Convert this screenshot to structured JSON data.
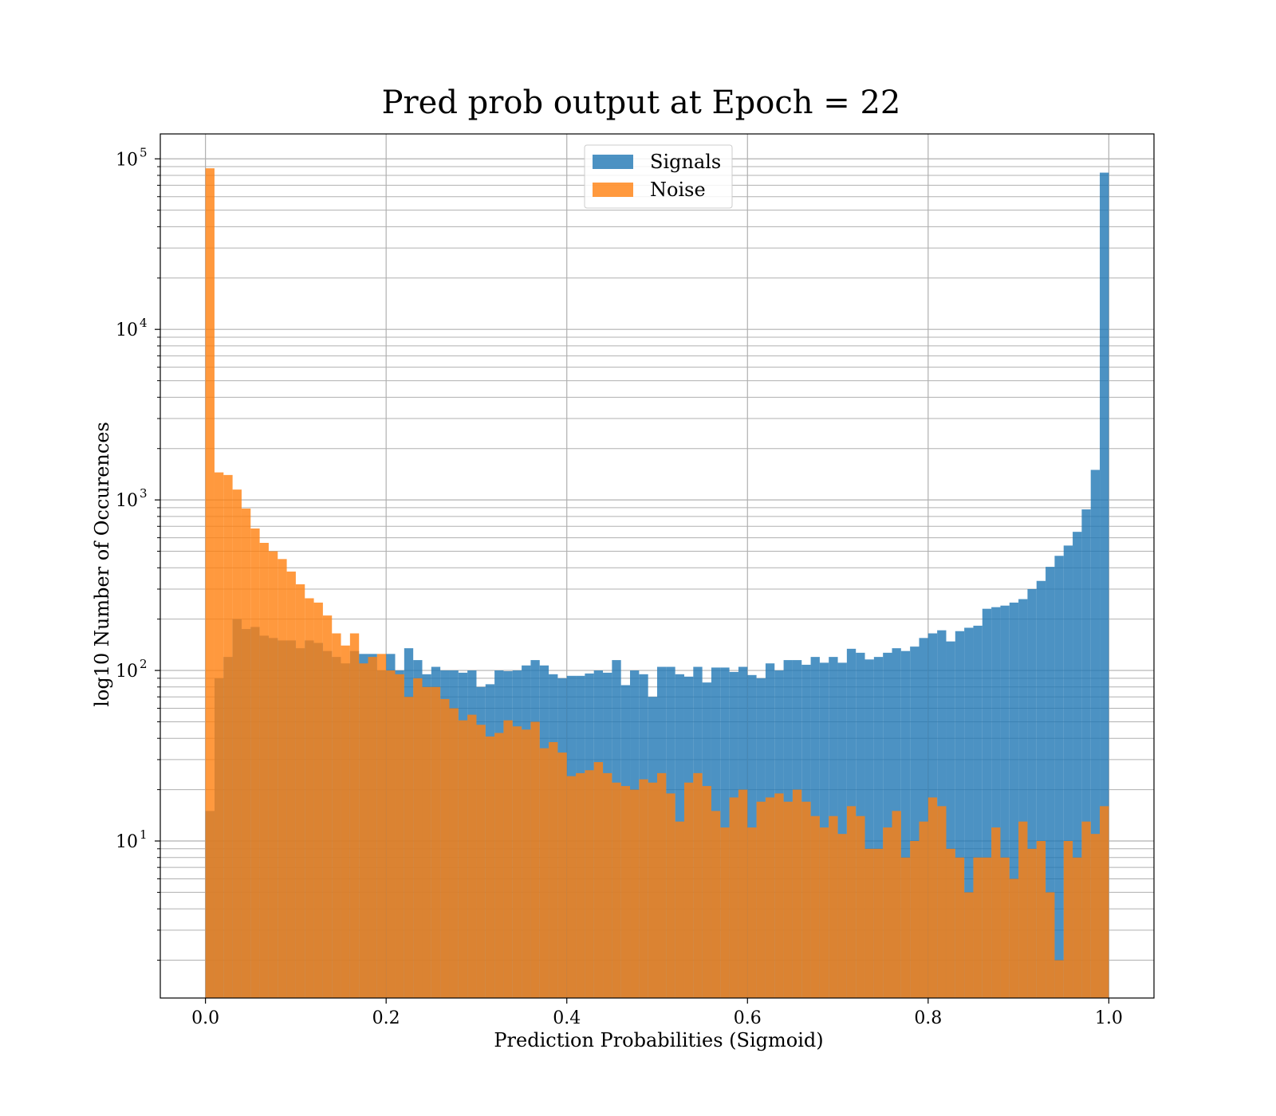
{
  "chart_data": {
    "type": "bar",
    "title": "Pred prob output at Epoch = 22",
    "xlabel": "Prediction Probabilities (Sigmoid)",
    "ylabel": "log10 Number of Occurences",
    "x_scale": "linear",
    "y_scale": "log",
    "xlim": [
      -0.05,
      1.05
    ],
    "ylim": [
      1.2,
      140000
    ],
    "x_ticks": [
      {
        "value": 0.0,
        "label": "0.0"
      },
      {
        "value": 0.2,
        "label": "0.2"
      },
      {
        "value": 0.4,
        "label": "0.4"
      },
      {
        "value": 0.6,
        "label": "0.6"
      },
      {
        "value": 0.8,
        "label": "0.8"
      },
      {
        "value": 1.0,
        "label": "1.0"
      }
    ],
    "y_ticks": [
      {
        "value": 10,
        "base": "10",
        "exp": "1"
      },
      {
        "value": 100,
        "base": "10",
        "exp": "2"
      },
      {
        "value": 1000,
        "base": "10",
        "exp": "3"
      },
      {
        "value": 10000,
        "base": "10",
        "exp": "4"
      },
      {
        "value": 100000,
        "base": "10",
        "exp": "5"
      }
    ],
    "grid": true,
    "legend_position": "top-center",
    "bin_width": 0.01,
    "bin_start": 0.0,
    "series": [
      {
        "name": "Signals",
        "color": "#1f77b4",
        "alpha": 0.8,
        "values": [
          15,
          90,
          120,
          200,
          175,
          180,
          160,
          155,
          150,
          150,
          135,
          150,
          145,
          130,
          120,
          110,
          130,
          125,
          125,
          100,
          125,
          100,
          135,
          115,
          95,
          105,
          100,
          100,
          97,
          100,
          80,
          83,
          100,
          99,
          100,
          107,
          115,
          107,
          95,
          90,
          93,
          93,
          96,
          100,
          97,
          115,
          82,
          100,
          95,
          70,
          105,
          105,
          95,
          92,
          105,
          85,
          104,
          104,
          98,
          105,
          94,
          90,
          110,
          100,
          115,
          115,
          108,
          120,
          111,
          120,
          111,
          134,
          127,
          116,
          120,
          127,
          135,
          130,
          138,
          155,
          165,
          172,
          148,
          170,
          178,
          183,
          230,
          235,
          240,
          250,
          262,
          300,
          335,
          405,
          470,
          540,
          650,
          880,
          1500,
          83000
        ]
      },
      {
        "name": "Noise",
        "color": "#ff7f0e",
        "alpha": 0.8,
        "values": [
          88000,
          1450,
          1400,
          1150,
          890,
          680,
          560,
          500,
          450,
          380,
          320,
          265,
          250,
          210,
          165,
          140,
          165,
          110,
          120,
          125,
          100,
          95,
          70,
          90,
          80,
          80,
          68,
          60,
          51,
          55,
          48,
          41,
          43,
          51,
          47,
          45,
          50,
          35,
          38,
          33,
          24,
          25,
          26,
          29,
          25,
          22,
          21,
          20,
          23,
          22,
          25,
          19,
          13,
          22,
          25,
          21,
          15,
          12,
          18,
          20,
          12,
          17,
          18,
          19,
          17,
          20,
          17,
          14,
          12,
          14,
          11,
          16,
          14,
          9,
          9,
          12,
          15,
          8,
          10,
          13,
          18,
          16,
          9,
          8,
          5,
          8,
          8,
          12,
          8,
          6,
          13,
          9,
          10,
          5,
          2,
          10,
          8,
          13,
          11,
          16
        ]
      }
    ]
  }
}
